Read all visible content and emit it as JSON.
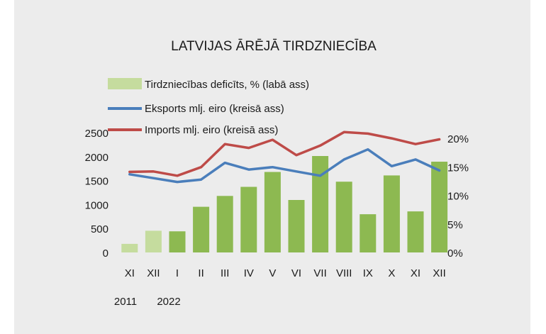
{
  "chart_data": {
    "type": "bar+line",
    "title": "LATVIJAS ĀRĒJĀ TIRDZNIECĪBA",
    "categories": [
      "XI",
      "XII",
      "I",
      "II",
      "III",
      "IV",
      "V",
      "VI",
      "VII",
      "VIII",
      "IX",
      "X",
      "XI",
      "XII"
    ],
    "year_labels": [
      "2011",
      "2022"
    ],
    "left_axis": {
      "ticks": [
        "0",
        "500",
        "1000",
        "1500",
        "2000",
        "2500"
      ],
      "ylim": [
        0,
        2500
      ]
    },
    "right_axis": {
      "ticks": [
        "0%",
        "5%",
        "10%",
        "15%",
        "20%"
      ],
      "ylim": [
        0,
        21
      ]
    },
    "series": [
      {
        "name": "Tirdzniecības deficīts, % (labā ass)",
        "kind": "bar",
        "axis": "right",
        "colors": [
          "#c5dc9e",
          "#c5dc9e",
          "#8db951",
          "#8db951",
          "#8db951",
          "#8db951",
          "#8db951",
          "#8db951",
          "#8db951",
          "#8db951",
          "#8db951",
          "#8db951",
          "#8db951",
          "#8db951"
        ],
        "values": [
          1.5,
          3.8,
          3.7,
          8.0,
          9.9,
          11.5,
          14.1,
          9.2,
          16.9,
          12.4,
          6.7,
          13.5,
          7.2,
          15.9
        ]
      },
      {
        "name": "Eksports mlj. eiro (kreisā ass)",
        "kind": "line",
        "axis": "left",
        "color": "#4a7ebb",
        "values": [
          1630,
          1550,
          1470,
          1520,
          1870,
          1730,
          1780,
          1690,
          1600,
          1940,
          2150,
          1800,
          1940,
          1710
        ]
      },
      {
        "name": "Imports mlj. eiro (kreisā ass)",
        "kind": "line",
        "axis": "left",
        "color": "#be4b48",
        "values": [
          1680,
          1690,
          1600,
          1780,
          2260,
          2180,
          2350,
          2030,
          2230,
          2510,
          2480,
          2380,
          2260,
          2360
        ]
      }
    ]
  }
}
